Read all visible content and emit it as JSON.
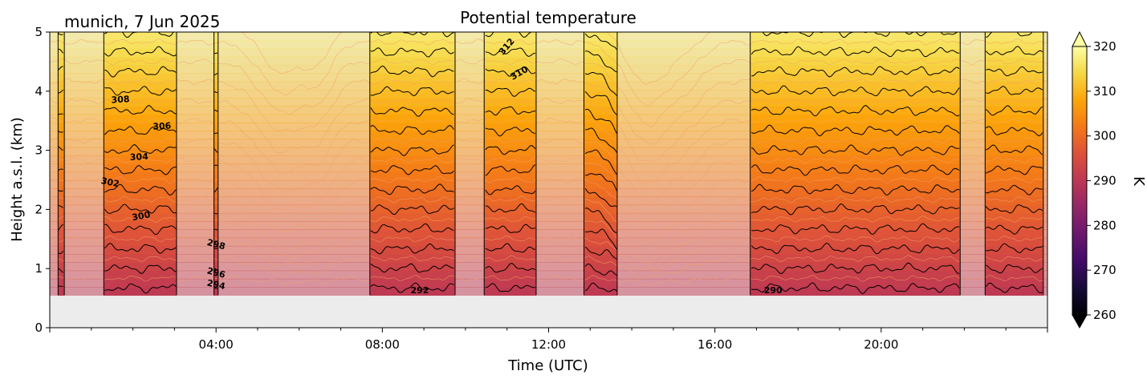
{
  "chart_data": {
    "type": "heatmap",
    "title": "Potential temperature",
    "subtitle": "munich, 7 Jun 2025",
    "xlabel": "Time (UTC)",
    "ylabel": "Height a.s.l. (km)",
    "x_unit": "hours UTC",
    "xlim": [
      0,
      24
    ],
    "ylim": [
      0,
      5
    ],
    "x_ticks": [
      "04:00",
      "08:00",
      "12:00",
      "16:00",
      "20:00"
    ],
    "y_ticks": [
      "0",
      "1",
      "2",
      "3",
      "4",
      "5"
    ],
    "data_bottom_km": 0.55,
    "colorbar": {
      "label": "K",
      "min": 260,
      "max": 320,
      "ticks": [
        "260",
        "270",
        "280",
        "290",
        "300",
        "310",
        "320"
      ],
      "colormap": "inferno",
      "extend": "both"
    },
    "contour_interval_K": 2,
    "surface_theta_K": 290,
    "lapse_K_per_km": 6,
    "opaque_segments_hours": [
      [
        0.2,
        0.35
      ],
      [
        1.3,
        3.05
      ],
      [
        3.95,
        4.05
      ],
      [
        7.7,
        9.75
      ],
      [
        10.45,
        11.7
      ],
      [
        12.85,
        13.65
      ],
      [
        16.85,
        21.9
      ],
      [
        22.5,
        23.9
      ]
    ],
    "contour_labels": [
      {
        "text": "308",
        "t": 1.7,
        "km": 3.85,
        "angle": -3
      },
      {
        "text": "306",
        "t": 2.7,
        "km": 3.4,
        "angle": -3
      },
      {
        "text": "304",
        "t": 2.15,
        "km": 2.88,
        "angle": -3
      },
      {
        "text": "302",
        "t": 1.45,
        "km": 2.45,
        "angle": 12
      },
      {
        "text": "300",
        "t": 2.2,
        "km": 1.88,
        "angle": -10
      },
      {
        "text": "298",
        "t": 4.0,
        "km": 1.4,
        "angle": 15
      },
      {
        "text": "296",
        "t": 4.0,
        "km": 0.92,
        "angle": 15
      },
      {
        "text": "294",
        "t": 4.0,
        "km": 0.72,
        "angle": 12
      },
      {
        "text": "292",
        "t": 8.9,
        "km": 0.62,
        "angle": 0
      },
      {
        "text": "290",
        "t": 17.4,
        "km": 0.62,
        "angle": 0
      },
      {
        "text": "310",
        "t": 11.3,
        "km": 4.3,
        "angle": -30
      },
      {
        "text": "312",
        "t": 11.0,
        "km": 4.75,
        "angle": -50
      }
    ],
    "colors": {
      "missing_background": "#ececec",
      "contour_line": "#000000"
    }
  }
}
